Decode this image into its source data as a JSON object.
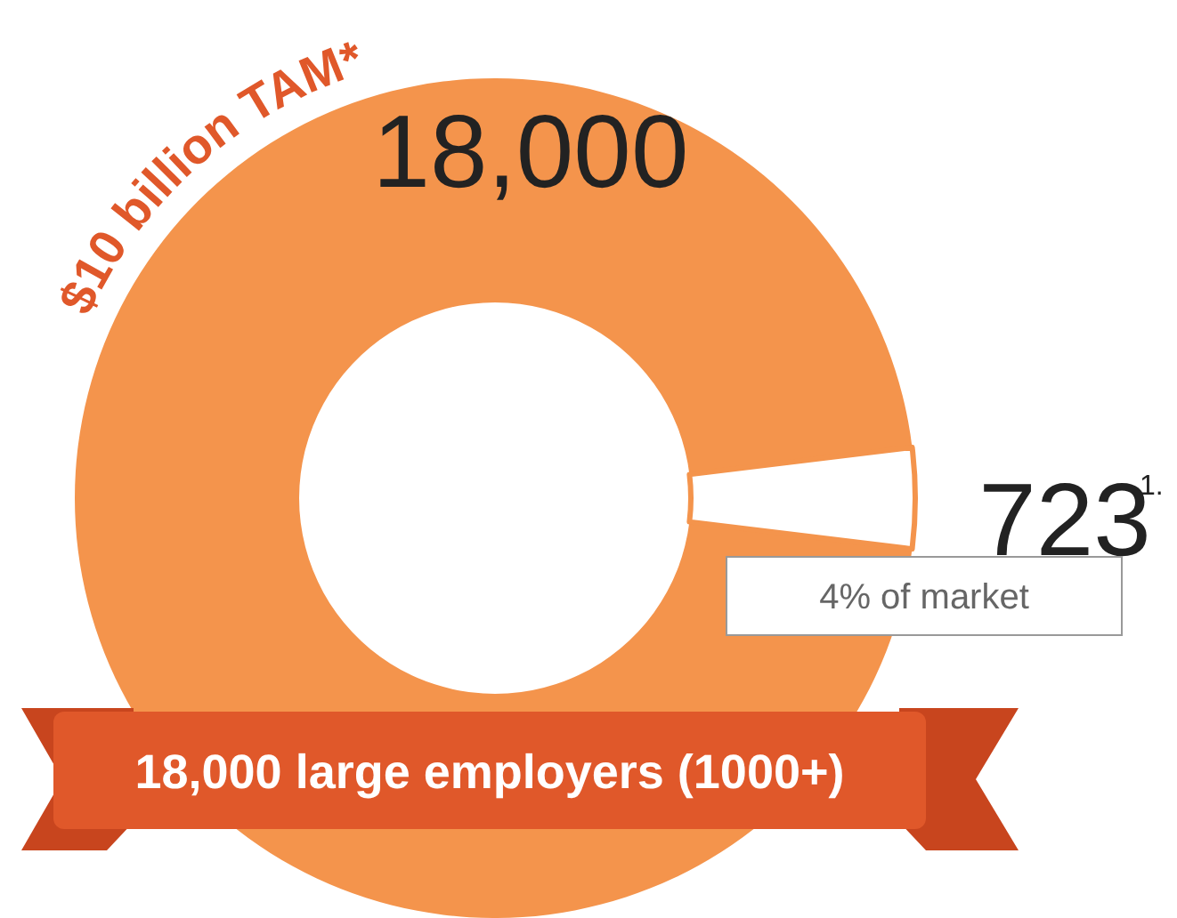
{
  "chart_data": {
    "type": "donut",
    "title": "$10 billion TAM*",
    "categories": [
      null,
      null
    ],
    "values": [
      18000,
      723
    ],
    "colors": [
      "#f4944c",
      "#ffffff"
    ],
    "value_labels": [
      "18,000",
      "723"
    ],
    "annotations": [
      "1.",
      "4% of market",
      "18,000 large employers (1000+)"
    ]
  }
}
